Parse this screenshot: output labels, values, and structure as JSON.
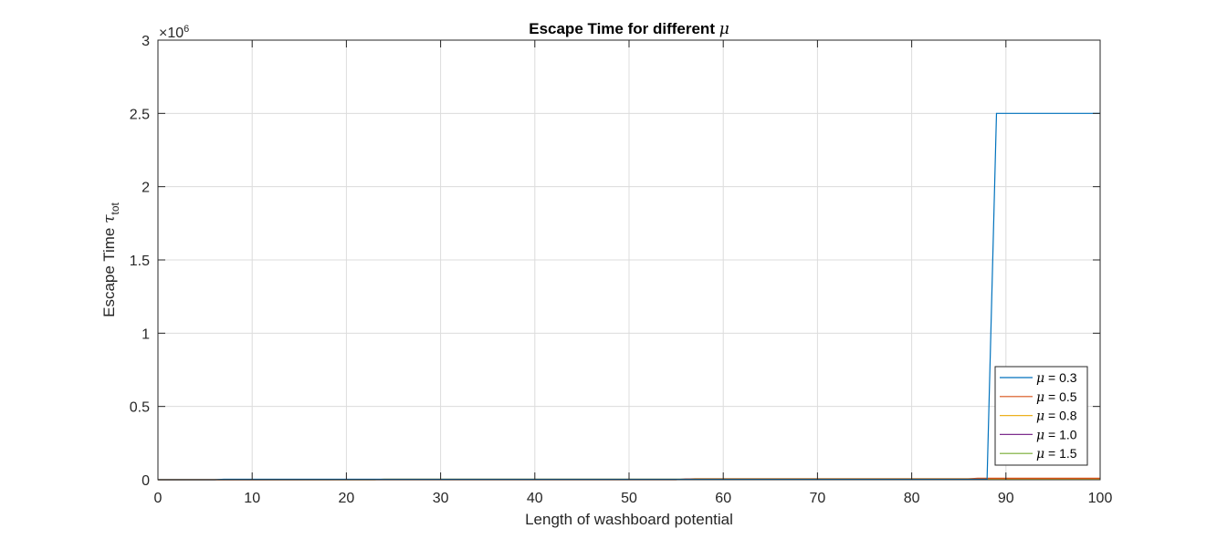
{
  "chart_data": {
    "type": "line",
    "title_text": "Escape Time for different ",
    "title_symbol": "μ",
    "xlabel": "Length of washboard potential",
    "ylabel_text": "Escape Time ",
    "ylabel_symbol": "τ",
    "ylabel_subscript": "tot",
    "y_exponent_label": "×10",
    "y_exponent_power": "6",
    "xlim": [
      0,
      100
    ],
    "ylim": [
      0,
      3
    ],
    "y_scale_factor": 1000000,
    "x_ticks": [
      0,
      10,
      20,
      30,
      40,
      50,
      60,
      70,
      80,
      90,
      100
    ],
    "x_tick_labels": [
      "0",
      "10",
      "20",
      "30",
      "40",
      "50",
      "60",
      "70",
      "80",
      "90",
      "100"
    ],
    "y_ticks": [
      0,
      0.5,
      1,
      1.5,
      2,
      2.5,
      3
    ],
    "y_tick_labels": [
      "0",
      "0.5",
      "1",
      "1.5",
      "2",
      "2.5",
      "3"
    ],
    "grid": true,
    "legend_position": "bottom-right",
    "legend_symbol": "μ",
    "series": [
      {
        "name": "= 0.3",
        "color": "#0072BD",
        "x": [
          0,
          6,
          7,
          88,
          89,
          100
        ],
        "y": [
          0,
          0,
          0.003,
          0.003,
          2.5,
          2.5
        ]
      },
      {
        "name": "= 0.5",
        "color": "#D95319",
        "x": [
          0,
          55,
          56,
          86,
          87,
          100
        ],
        "y": [
          0,
          0,
          0.006,
          0.006,
          0.01,
          0.01
        ]
      },
      {
        "name": "= 0.8",
        "color": "#EDB120",
        "x": [
          0,
          23,
          24,
          56,
          57,
          87,
          88,
          100
        ],
        "y": [
          0,
          0,
          0.004,
          0.004,
          0.007,
          0.007,
          0.004,
          0.004
        ]
      },
      {
        "name": "= 1.0",
        "color": "#7E2F8E",
        "x": [
          0,
          100
        ],
        "y": [
          0,
          0.002
        ]
      },
      {
        "name": "= 1.5",
        "color": "#77AC30",
        "x": [
          0,
          56,
          57,
          87,
          88,
          100
        ],
        "y": [
          0,
          0.002,
          0.005,
          0.005,
          0.004,
          0.004
        ]
      }
    ]
  }
}
